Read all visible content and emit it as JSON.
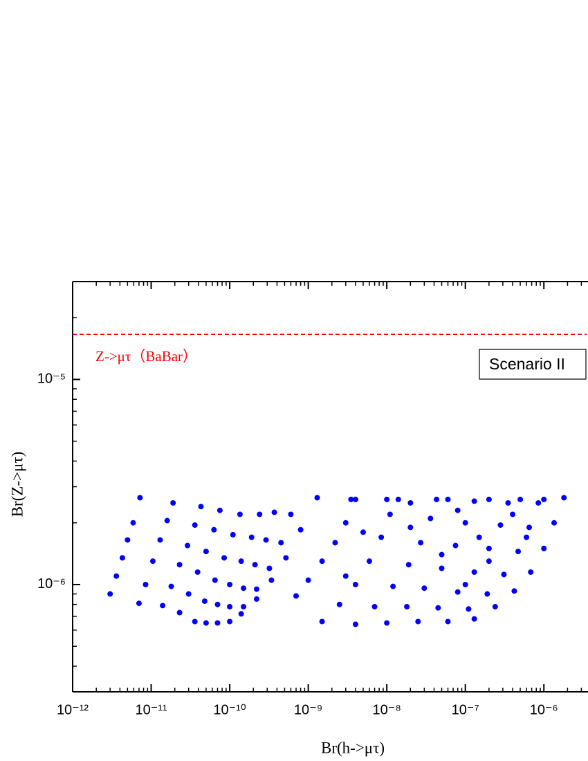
{
  "chart_data": {
    "type": "scatter",
    "xlabel": "Br(h->μτ)",
    "ylabel": "Br(Z->μτ)",
    "log_x": true,
    "log_y": true,
    "color": "#0000ff",
    "xlim": [
      1e-12,
      3.5e-06
    ],
    "ylim": [
      3e-07,
      3e-05
    ],
    "xticks": [
      {
        "value": 1e-12,
        "label": "10⁻¹²"
      },
      {
        "value": 1e-11,
        "label": "10⁻¹¹"
      },
      {
        "value": 1e-10,
        "label": "10⁻¹⁰"
      },
      {
        "value": 1e-09,
        "label": "10⁻⁹"
      },
      {
        "value": 1e-08,
        "label": "10⁻⁸"
      },
      {
        "value": 1e-07,
        "label": "10⁻⁷"
      },
      {
        "value": 1e-06,
        "label": "10⁻⁶"
      }
    ],
    "yticks": [
      {
        "value": 1e-06,
        "label": "10⁻⁶"
      },
      {
        "value": 1e-05,
        "label": "10⁻⁵"
      }
    ],
    "minor_ticks": true,
    "reference_line": {
      "value": 1.66e-05,
      "color": "#ff0000",
      "label": "Z->μτ（BaBar）"
    },
    "box_label": "Scenario II",
    "x": [
      3e-12,
      3.6e-12,
      4.3e-12,
      5e-12,
      5.9e-12,
      7.2e-12,
      7e-12,
      8.5e-12,
      1.05e-11,
      1.3e-11,
      1.6e-11,
      1.9e-11,
      1.4e-11,
      1.8e-11,
      2.3e-11,
      2.9e-11,
      3.6e-11,
      4.3e-11,
      2.3e-11,
      3e-11,
      3.9e-11,
      5e-11,
      6.3e-11,
      7.5e-11,
      3.6e-11,
      4.8e-11,
      6.5e-11,
      8.5e-11,
      1.1e-10,
      1.35e-10,
      5e-11,
      7e-11,
      1e-10,
      1.4e-10,
      1.9e-10,
      2.4e-10,
      7e-11,
      1e-10,
      1.5e-10,
      2.1e-10,
      2.9e-10,
      3.7e-10,
      1e-10,
      1.5e-10,
      2.2e-10,
      3.2e-10,
      4.5e-10,
      6e-10,
      1.4e-10,
      2.2e-10,
      3.4e-10,
      5.2e-10,
      8e-10,
      1.3e-09,
      7e-10,
      1e-09,
      1.5e-09,
      2.2e-09,
      3e-09,
      3.5e-09,
      1.5e-09,
      2.5e-09,
      4e-09,
      6e-09,
      8.5e-09,
      1.1e-08,
      1.4e-08,
      4e-09,
      7e-09,
      1.2e-08,
      1.9e-08,
      2.7e-08,
      3.6e-08,
      4.3e-08,
      1e-08,
      1.8e-08,
      3e-08,
      5e-08,
      7.5e-08,
      1e-07,
      1.3e-07,
      2.5e-08,
      4.5e-08,
      8e-08,
      1.3e-07,
      2e-07,
      2.8e-07,
      3.5e-07,
      6e-08,
      1.1e-07,
      1.9e-07,
      3.1e-07,
      4.7e-07,
      6.5e-07,
      8.5e-07,
      1.3e-07,
      2.4e-07,
      4.2e-07,
      6.8e-07,
      1e-06,
      1.35e-06,
      1.8e-06,
      4e-09,
      1e-08,
      2e-08,
      6e-08,
      2e-07,
      5e-07,
      1e-06,
      3e-09,
      5e-09,
      2e-08,
      5e-08,
      8e-08,
      1.5e-07,
      4e-07,
      1e-07,
      2e-07,
      6e-07
    ],
    "values": [
      9e-07,
      1.1e-06,
      1.35e-06,
      1.65e-06,
      2e-06,
      2.65e-06,
      8.1e-07,
      1e-06,
      1.3e-06,
      1.65e-06,
      2.05e-06,
      2.5e-06,
      7.9e-07,
      9.8e-07,
      1.25e-06,
      1.55e-06,
      1.95e-06,
      2.4e-06,
      7.3e-07,
      9e-07,
      1.15e-06,
      1.45e-06,
      1.85e-06,
      2.3e-06,
      6.6e-07,
      8.3e-07,
      1.05e-06,
      1.35e-06,
      1.75e-06,
      2.2e-06,
      6.5e-07,
      8e-07,
      1e-06,
      1.3e-06,
      1.7e-06,
      2.2e-06,
      6.5e-07,
      7.8e-07,
      9.6e-07,
      1.25e-06,
      1.65e-06,
      2.25e-06,
      6.6e-07,
      7.8e-07,
      9.5e-07,
      1.2e-06,
      1.6e-06,
      2.2e-06,
      7.2e-07,
      8.5e-07,
      1.05e-06,
      1.35e-06,
      1.85e-06,
      2.65e-06,
      8.8e-07,
      1.05e-06,
      1.3e-06,
      1.6e-06,
      2e-06,
      2.6e-06,
      6.6e-07,
      8e-07,
      1e-06,
      1.3e-06,
      1.7e-06,
      2.2e-06,
      2.6e-06,
      6.4e-07,
      7.8e-07,
      9.8e-07,
      1.25e-06,
      1.6e-06,
      2.1e-06,
      2.6e-06,
      6.5e-07,
      7.8e-07,
      9.6e-07,
      1.2e-06,
      1.55e-06,
      2e-06,
      2.55e-06,
      6.6e-07,
      7.7e-07,
      9.2e-07,
      1.15e-06,
      1.5e-06,
      1.95e-06,
      2.5e-06,
      6.6e-07,
      7.6e-07,
      9e-07,
      1.12e-06,
      1.45e-06,
      1.9e-06,
      2.5e-06,
      6.8e-07,
      7.8e-07,
      9.3e-07,
      1.15e-06,
      1.5e-06,
      2e-06,
      2.65e-06,
      2.6e-06,
      2.6e-06,
      2.5e-06,
      2.6e-06,
      2.6e-06,
      2.6e-06,
      2.6e-06,
      1.1e-06,
      1.8e-06,
      1.9e-06,
      1.4e-06,
      2.3e-06,
      1.7e-06,
      2.2e-06,
      1e-06,
      1.3e-06,
      1.7e-06
    ]
  }
}
